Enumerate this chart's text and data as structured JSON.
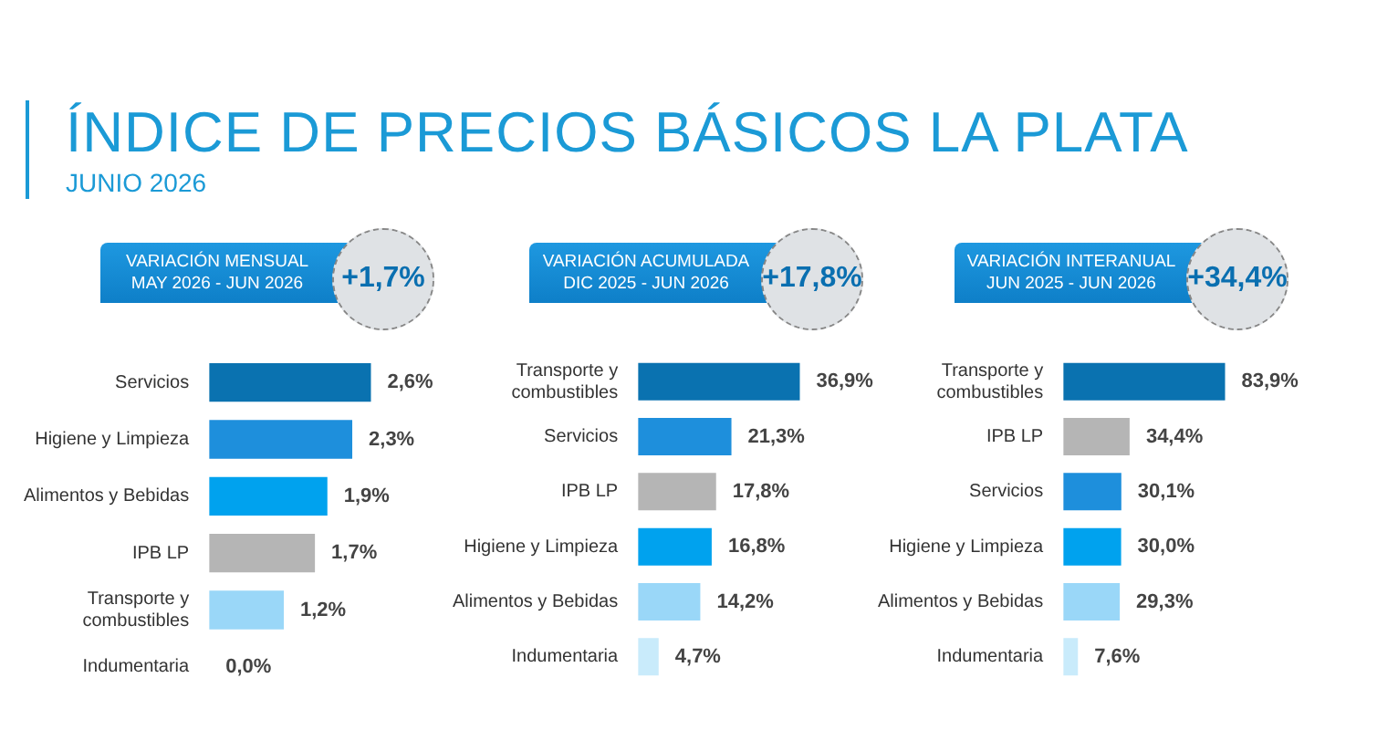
{
  "chart_data": [
    {
      "type": "other",
      "title": "ÍNDICE DE PRECIOS BÁSICOS LA PLATA",
      "subtitle": "JUNIO 2026"
    },
    {
      "type": "bar",
      "orientation": "horizontal",
      "title": "VARIACIÓN MENSUAL",
      "subtitle": "MAY 2026 - JUN 2026",
      "annotations": [
        "+1,7%"
      ],
      "categories": [
        "Servicios",
        "Higiene y Limpieza",
        "Alimentos y Bebidas",
        "IPB LP",
        "Transporte y combustibles",
        "Indumentaria"
      ],
      "values": [
        2.6,
        2.3,
        1.9,
        1.7,
        1.2,
        0.0
      ],
      "value_labels": [
        "2,6%",
        "2,3%",
        "1,9%",
        "1,7%",
        "1,2%",
        "0,0%"
      ],
      "colors": [
        "#0a72b0",
        "#1e8fdc",
        "#00a2ee",
        "#b5b5b5",
        "#9ad7f8",
        "#c9ebfb"
      ]
    },
    {
      "type": "bar",
      "orientation": "horizontal",
      "title": "VARIACIÓN ACUMULADA",
      "subtitle": "DIC 2025 - JUN 2026",
      "annotations": [
        "+17,8%"
      ],
      "categories": [
        "Transporte y combustibles",
        "Servicios",
        "IPB LP",
        "Higiene y Limpieza",
        "Alimentos y Bebidas",
        "Indumentaria"
      ],
      "values": [
        36.9,
        21.3,
        17.8,
        16.8,
        14.2,
        4.7
      ],
      "value_labels": [
        "36,9%",
        "21,3%",
        "17,8%",
        "16,8%",
        "14,2%",
        "4,7%"
      ],
      "colors": [
        "#0a72b0",
        "#1e8fdc",
        "#b5b5b5",
        "#00a2ee",
        "#9ad7f8",
        "#c9ebfb"
      ]
    },
    {
      "type": "bar",
      "orientation": "horizontal",
      "title": "VARIACIÓN INTERANUAL",
      "subtitle": "JUN 2025 - JUN 2026",
      "annotations": [
        "+34,4%"
      ],
      "categories": [
        "Transporte y combustibles",
        "IPB LP",
        "Servicios",
        "Higiene y Limpieza",
        "Alimentos y Bebidas",
        "Indumentaria"
      ],
      "values": [
        83.9,
        34.4,
        30.1,
        30.0,
        29.3,
        7.6
      ],
      "value_labels": [
        "83,9%",
        "34,4%",
        "30,1%",
        "30,0%",
        "29,3%",
        "7,6%"
      ],
      "colors": [
        "#0a72b0",
        "#b5b5b5",
        "#1e8fdc",
        "#00a2ee",
        "#9ad7f8",
        "#c9ebfb"
      ]
    }
  ]
}
